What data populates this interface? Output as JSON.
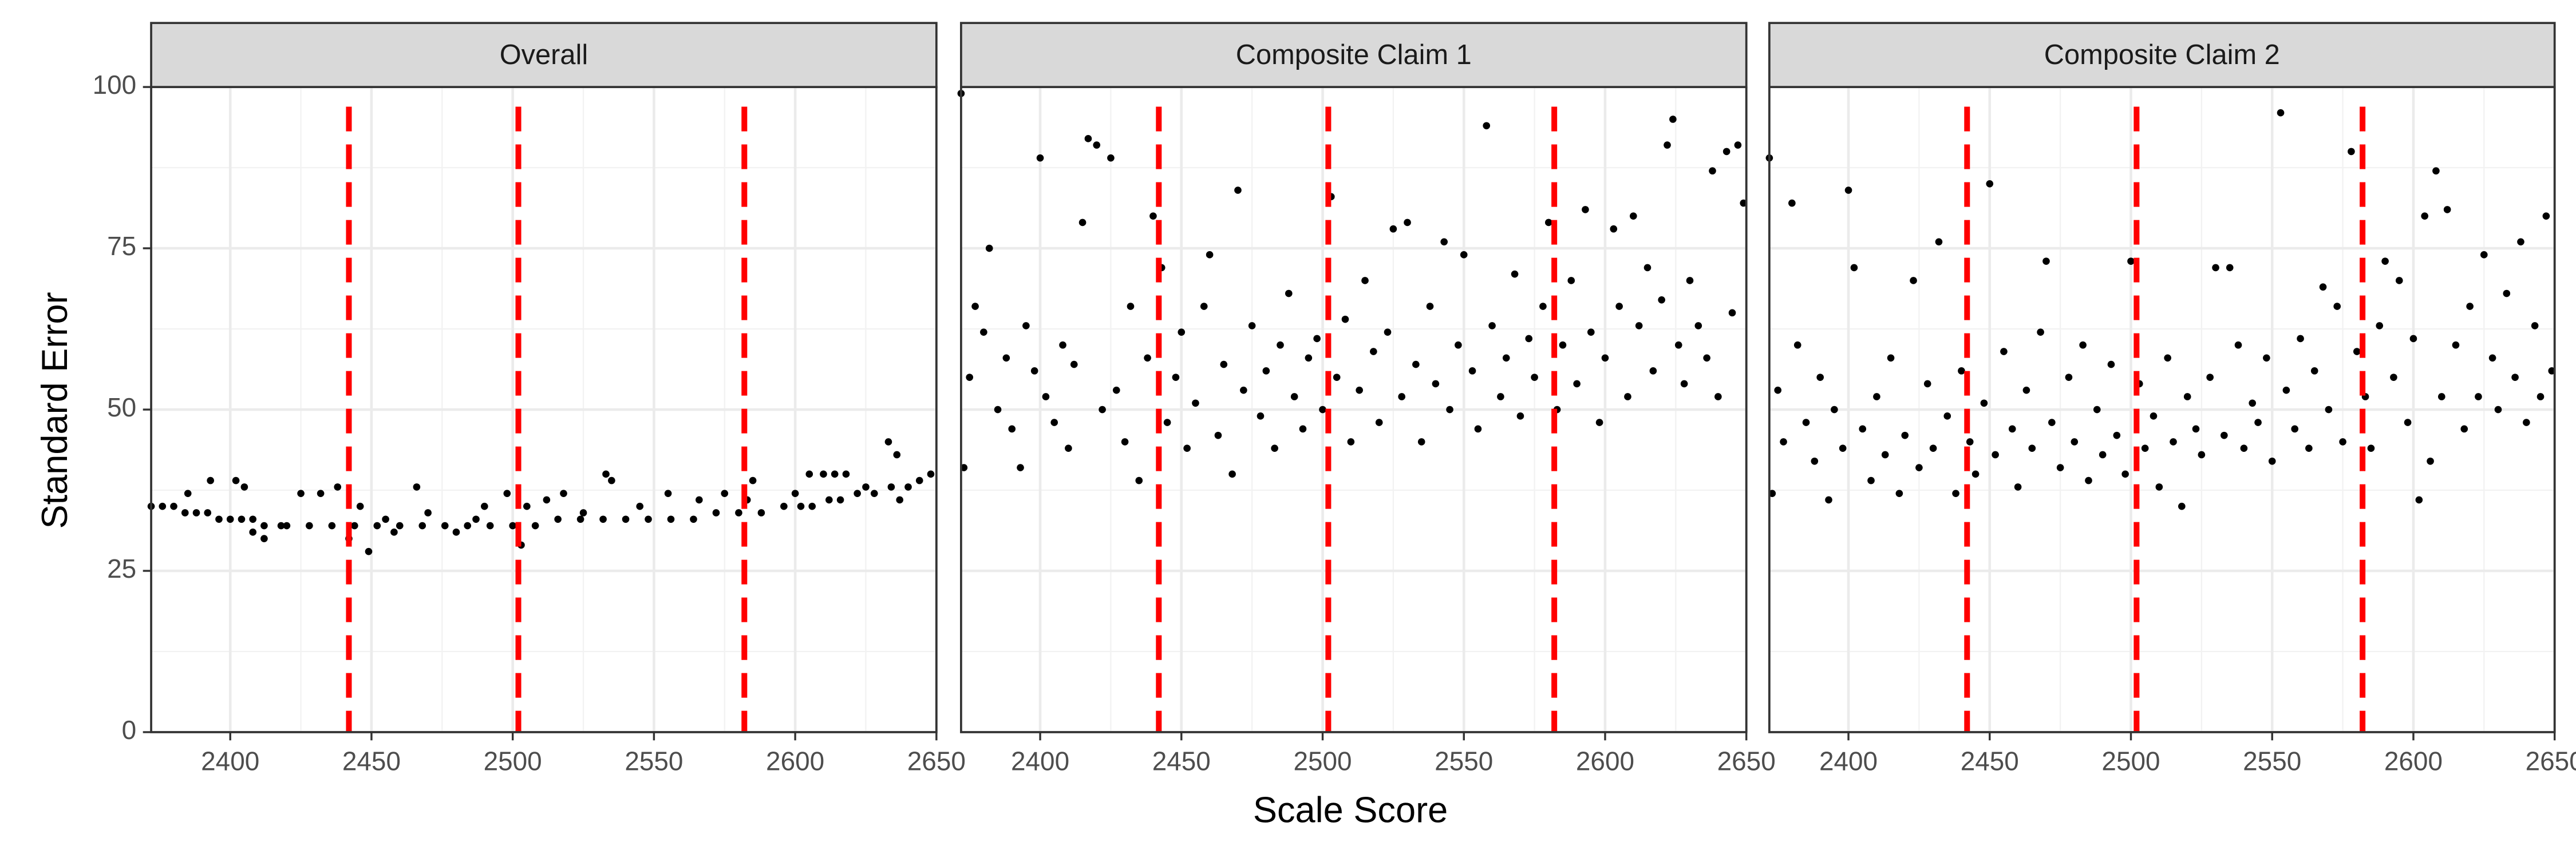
{
  "chart_data": {
    "type": "scatter",
    "xlabel": "Scale Score",
    "ylabel": "Standard Error",
    "xlim": [
      2372,
      2650
    ],
    "ylim": [
      0,
      100
    ],
    "xticks": [
      2400,
      2450,
      2500,
      2550,
      2600,
      2650
    ],
    "yticks": [
      0,
      25,
      50,
      75,
      100
    ],
    "grid": true,
    "color": "#000000",
    "vline_color": "#ff0000",
    "vlines": [
      2442,
      2502,
      2582
    ],
    "panels": [
      {
        "title": "Overall",
        "x": [
          2372,
          2376,
          2380,
          2384,
          2388,
          2392,
          2396,
          2400,
          2404,
          2408,
          2412,
          2420,
          2428,
          2436,
          2444,
          2452,
          2460,
          2468,
          2476,
          2484,
          2492,
          2500,
          2508,
          2516,
          2524,
          2532,
          2540,
          2548,
          2556,
          2564,
          2572,
          2580,
          2588,
          2596,
          2602,
          2606,
          2612,
          2616,
          2622,
          2628,
          2634,
          2640,
          2644,
          2648,
          2385,
          2393,
          2402,
          2405,
          2408,
          2412,
          2418,
          2425,
          2432,
          2438,
          2442,
          2446,
          2449,
          2455,
          2458,
          2466,
          2470,
          2480,
          2487,
          2490,
          2498,
          2503,
          2505,
          2512,
          2518,
          2525,
          2533,
          2535,
          2545,
          2555,
          2566,
          2575,
          2585,
          2583,
          2600,
          2605,
          2610,
          2614,
          2618,
          2625,
          2633,
          2636,
          2637
        ],
        "values": [
          35,
          35,
          35,
          34,
          34,
          34,
          33,
          33,
          33,
          33,
          32,
          32,
          32,
          32,
          32,
          32,
          32,
          32,
          32,
          32,
          32,
          32,
          32,
          33,
          33,
          33,
          33,
          33,
          33,
          33,
          34,
          34,
          34,
          35,
          35,
          35,
          36,
          36,
          37,
          37,
          38,
          38,
          39,
          40,
          37,
          39,
          39,
          38,
          31,
          30,
          32,
          37,
          37,
          38,
          30,
          35,
          28,
          33,
          31,
          38,
          34,
          31,
          33,
          35,
          37,
          29,
          35,
          36,
          37,
          34,
          40,
          39,
          35,
          37,
          36,
          37,
          39,
          36,
          37,
          40,
          40,
          40,
          40,
          38,
          45,
          43,
          36
        ]
      },
      {
        "title": "Composite Claim 1",
        "x": [
          2372,
          2373,
          2375,
          2377,
          2380,
          2382,
          2385,
          2388,
          2390,
          2393,
          2395,
          2398,
          2400,
          2402,
          2405,
          2408,
          2410,
          2412,
          2415,
          2417,
          2420,
          2422,
          2425,
          2427,
          2430,
          2432,
          2435,
          2438,
          2440,
          2443,
          2445,
          2448,
          2450,
          2452,
          2455,
          2458,
          2460,
          2463,
          2465,
          2468,
          2470,
          2472,
          2475,
          2478,
          2480,
          2483,
          2485,
          2488,
          2490,
          2493,
          2495,
          2498,
          2500,
          2503,
          2505,
          2508,
          2510,
          2513,
          2515,
          2518,
          2520,
          2523,
          2525,
          2528,
          2530,
          2533,
          2535,
          2538,
          2540,
          2543,
          2545,
          2548,
          2550,
          2553,
          2555,
          2558,
          2560,
          2563,
          2565,
          2568,
          2570,
          2573,
          2575,
          2578,
          2580,
          2583,
          2585,
          2588,
          2590,
          2593,
          2595,
          2598,
          2600,
          2603,
          2605,
          2608,
          2610,
          2612,
          2615,
          2617,
          2620,
          2622,
          2624,
          2626,
          2628,
          2630,
          2633,
          2636,
          2638,
          2640,
          2643,
          2645,
          2647,
          2649
        ],
        "values": [
          99,
          41,
          55,
          66,
          62,
          75,
          50,
          58,
          47,
          41,
          63,
          56,
          89,
          52,
          48,
          60,
          44,
          57,
          79,
          92,
          91,
          50,
          89,
          53,
          45,
          66,
          39,
          58,
          80,
          72,
          48,
          55,
          62,
          44,
          51,
          66,
          74,
          46,
          57,
          40,
          84,
          53,
          63,
          49,
          56,
          44,
          60,
          68,
          52,
          47,
          58,
          61,
          50,
          83,
          55,
          64,
          45,
          53,
          70,
          59,
          48,
          62,
          78,
          52,
          79,
          57,
          45,
          66,
          54,
          76,
          50,
          60,
          74,
          56,
          47,
          94,
          63,
          52,
          58,
          71,
          49,
          61,
          55,
          66,
          79,
          50,
          60,
          70,
          54,
          81,
          62,
          48,
          58,
          78,
          66,
          52,
          80,
          63,
          72,
          56,
          67,
          91,
          95,
          60,
          54,
          70,
          63,
          58,
          87,
          52,
          90,
          65,
          91,
          82
        ]
      },
      {
        "title": "Composite Claim 2",
        "x": [
          2372,
          2373,
          2375,
          2377,
          2380,
          2382,
          2385,
          2388,
          2390,
          2393,
          2395,
          2398,
          2400,
          2402,
          2405,
          2408,
          2410,
          2413,
          2415,
          2418,
          2420,
          2423,
          2425,
          2428,
          2430,
          2432,
          2435,
          2438,
          2440,
          2443,
          2445,
          2448,
          2450,
          2452,
          2455,
          2458,
          2460,
          2463,
          2465,
          2468,
          2470,
          2472,
          2475,
          2478,
          2480,
          2483,
          2485,
          2488,
          2490,
          2493,
          2495,
          2498,
          2500,
          2503,
          2505,
          2508,
          2510,
          2513,
          2515,
          2518,
          2520,
          2523,
          2525,
          2528,
          2530,
          2533,
          2535,
          2538,
          2540,
          2543,
          2545,
          2548,
          2550,
          2553,
          2555,
          2558,
          2560,
          2563,
          2565,
          2568,
          2570,
          2573,
          2575,
          2578,
          2580,
          2583,
          2585,
          2588,
          2590,
          2593,
          2595,
          2598,
          2600,
          2602,
          2604,
          2606,
          2608,
          2610,
          2612,
          2615,
          2618,
          2620,
          2623,
          2625,
          2628,
          2630,
          2633,
          2636,
          2638,
          2640,
          2643,
          2645,
          2647,
          2649
        ],
        "values": [
          89,
          37,
          53,
          45,
          82,
          60,
          48,
          42,
          55,
          36,
          50,
          44,
          84,
          72,
          47,
          39,
          52,
          43,
          58,
          37,
          46,
          70,
          41,
          54,
          44,
          76,
          49,
          37,
          56,
          45,
          40,
          51,
          85,
          43,
          59,
          47,
          38,
          53,
          44,
          62,
          73,
          48,
          41,
          55,
          45,
          60,
          39,
          50,
          43,
          57,
          46,
          40,
          73,
          54,
          44,
          49,
          38,
          58,
          45,
          35,
          52,
          47,
          43,
          55,
          72,
          46,
          72,
          60,
          44,
          51,
          48,
          58,
          42,
          96,
          53,
          47,
          61,
          44,
          56,
          69,
          50,
          66,
          45,
          90,
          59,
          52,
          44,
          63,
          73,
          55,
          70,
          48,
          61,
          36,
          80,
          42,
          87,
          52,
          81,
          60,
          47,
          66,
          52,
          74,
          58,
          50,
          68,
          55,
          76,
          48,
          63,
          52,
          80,
          56
        ]
      }
    ]
  }
}
